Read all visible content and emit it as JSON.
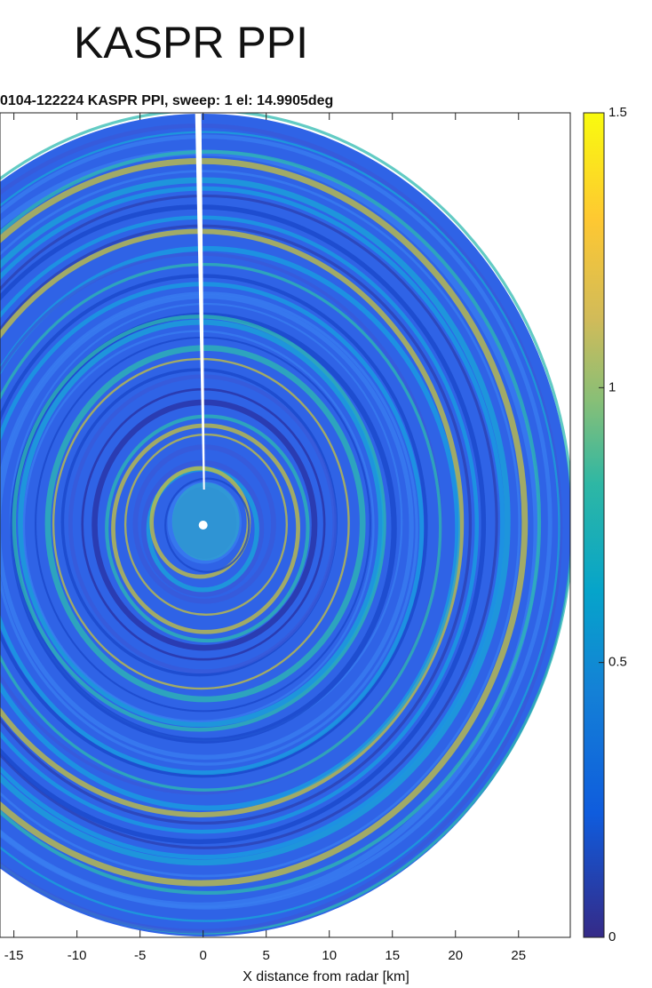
{
  "chart_data": {
    "type": "ppi",
    "title": "KASPR PPI",
    "subtitle": "0104-122224 KASPR PPI, sweep: 1 el: 14.9905deg",
    "x_label": "X distance from radar [km]",
    "xlim": [
      -16.1,
      29.1
    ],
    "xticks": [
      -15,
      -10,
      -5,
      0,
      5,
      10,
      15,
      20,
      25
    ],
    "colorbar": {
      "clim": [
        0,
        1.5
      ],
      "ticks": [
        0,
        0.5,
        1,
        1.5
      ]
    }
  }
}
